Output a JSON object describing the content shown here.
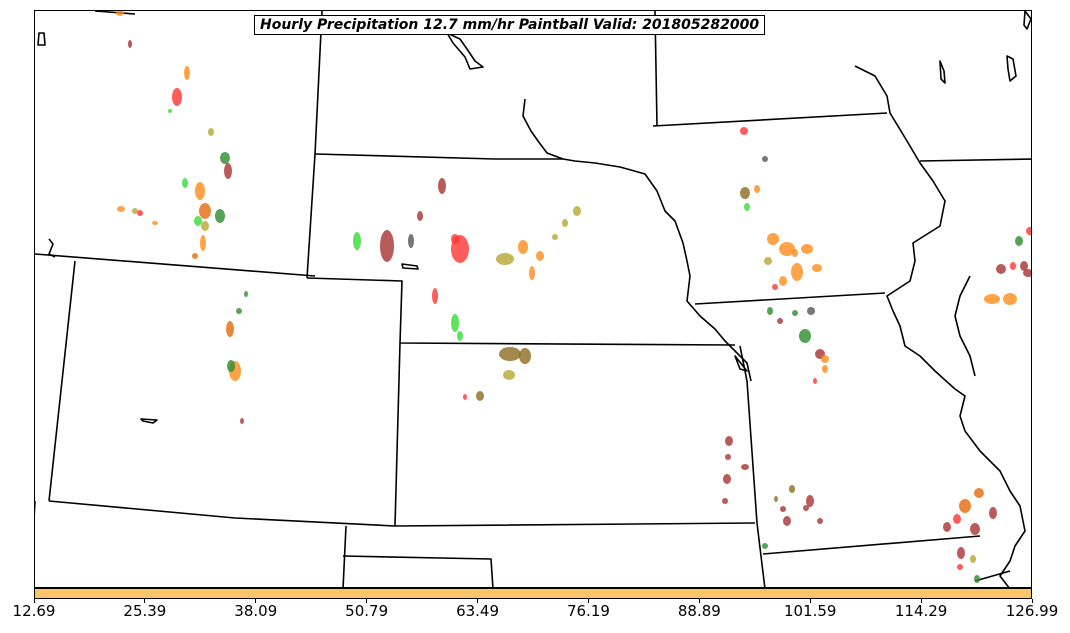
{
  "title": "Hourly Precipitation 12.7 mm/hr Paintball Valid: 201805282000",
  "colorbar": {
    "color": "#f9c46a",
    "ticks": [
      "12.69",
      "25.39",
      "38.09",
      "50.79",
      "63.49",
      "76.19",
      "88.89",
      "101.59",
      "114.29",
      "126.99"
    ]
  },
  "member_colors": [
    "#ff3333",
    "#ff8c1a",
    "#2e8b2e",
    "#33dd33",
    "#a83232",
    "#b5a632",
    "#8c6d1f",
    "#555555",
    "#e36a0c"
  ]
}
